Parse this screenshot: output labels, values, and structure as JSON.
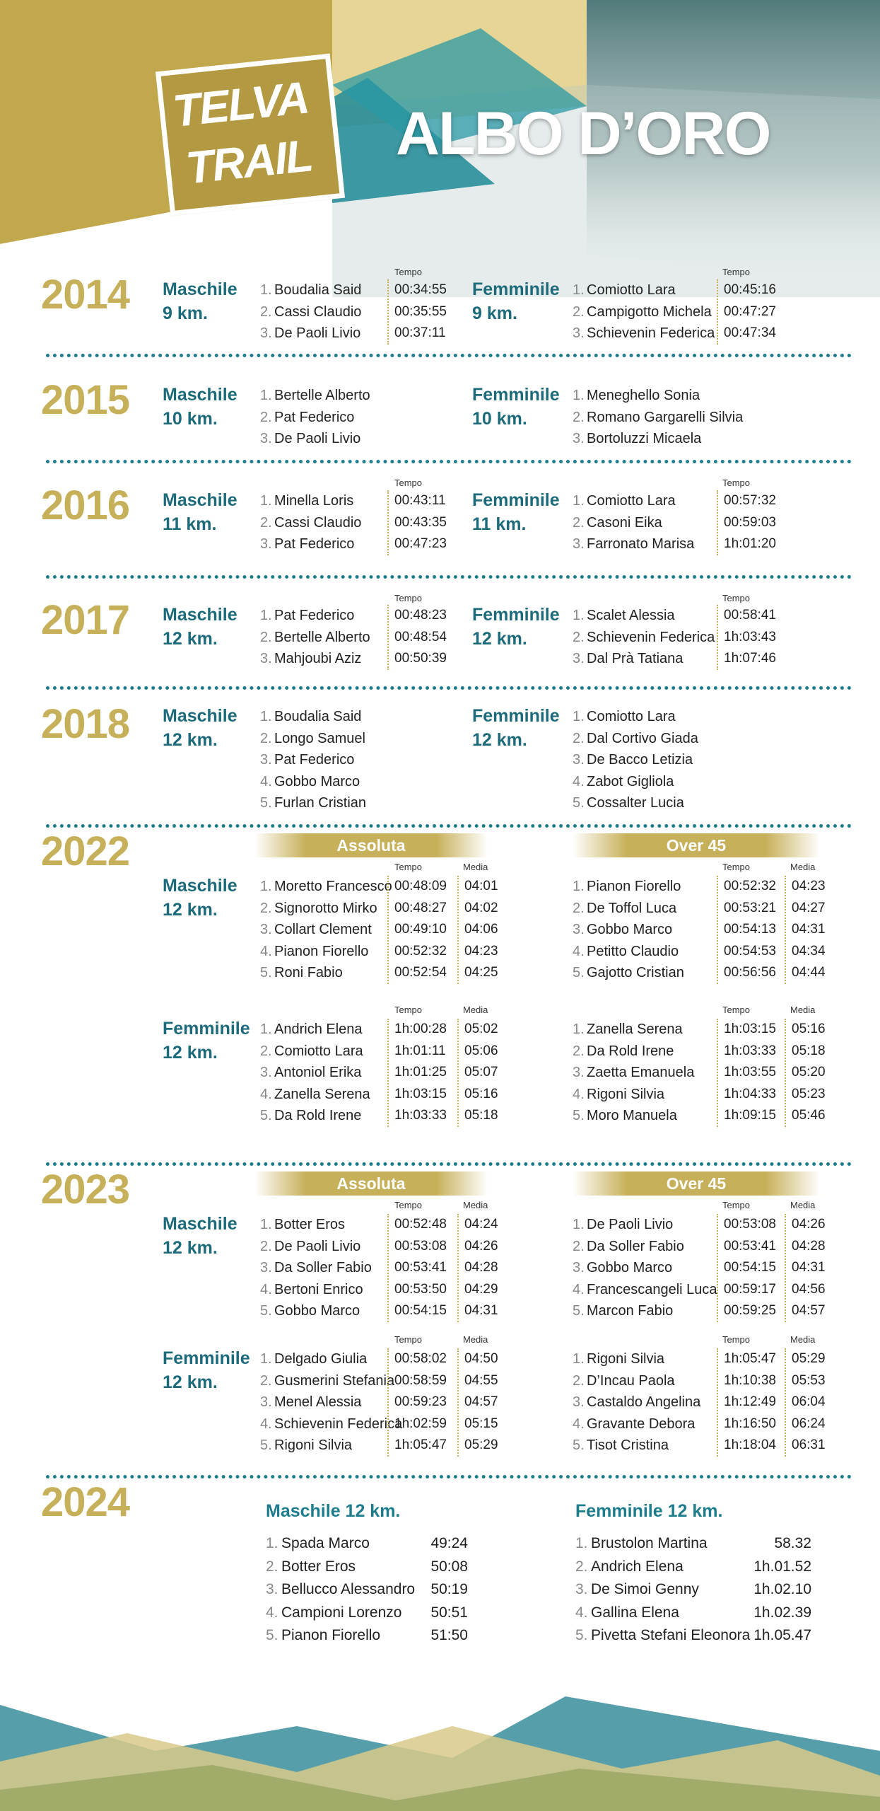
{
  "colors": {
    "gold": "#c7b05a",
    "teal": "#1d6b7a",
    "dark_teal": "#1d7d8c"
  },
  "header": {
    "logo_line1": "TELVA",
    "logo_line2": "TRAIL",
    "title": "ALBO D’ORO"
  },
  "labels": {
    "tempo": "Tempo",
    "media": "Media",
    "assoluta": "Assoluta",
    "over45": "Over 45"
  },
  "y2014": {
    "year": "2014",
    "m_cat": "Maschile",
    "m_dist": "9 km.",
    "m_names": [
      "Boudalia Said",
      "Cassi Claudio",
      "De Paoli Livio"
    ],
    "m_times": [
      "00:34:55",
      "00:35:55",
      "00:37:11"
    ],
    "f_cat": "Femminile",
    "f_dist": "9 km.",
    "f_names": [
      "Comiotto Lara",
      "Campigotto Michela",
      "Schievenin Federica"
    ],
    "f_times": [
      "00:45:16",
      "00:47:27",
      "00:47:34"
    ]
  },
  "y2015": {
    "year": "2015",
    "m_cat": "Maschile",
    "m_dist": "10 km.",
    "m_names": [
      "Bertelle Alberto",
      "Pat Federico",
      "De Paoli Livio"
    ],
    "f_cat": "Femminile",
    "f_dist": "10 km.",
    "f_names": [
      "Meneghello Sonia",
      "Romano Gargarelli Silvia",
      "Bortoluzzi Micaela"
    ]
  },
  "y2016": {
    "year": "2016",
    "m_cat": "Maschile",
    "m_dist": "11 km.",
    "m_names": [
      "Minella Loris",
      "Cassi Claudio",
      "Pat Federico"
    ],
    "m_times": [
      "00:43:11",
      "00:43:35",
      "00:47:23"
    ],
    "f_cat": "Femminile",
    "f_dist": "11 km.",
    "f_names": [
      "Comiotto Lara",
      "Casoni Eika",
      "Farronato Marisa"
    ],
    "f_times": [
      "00:57:32",
      "00:59:03",
      "1h:01:20"
    ]
  },
  "y2017": {
    "year": "2017",
    "m_cat": "Maschile",
    "m_dist": "12 km.",
    "m_names": [
      "Pat Federico",
      "Bertelle Alberto",
      "Mahjoubi Aziz"
    ],
    "m_times": [
      "00:48:23",
      "00:48:54",
      "00:50:39"
    ],
    "f_cat": "Femminile",
    "f_dist": "12 km.",
    "f_names": [
      "Scalet Alessia",
      "Schievenin Federica",
      "Dal Prà Tatiana"
    ],
    "f_times": [
      "00:58:41",
      "1h:03:43",
      "1h:07:46"
    ]
  },
  "y2018": {
    "year": "2018",
    "m_cat": "Maschile",
    "m_dist": "12 km.",
    "m_names": [
      "Boudalia Said",
      "Longo Samuel",
      "Pat Federico",
      "Gobbo Marco",
      "Furlan Cristian"
    ],
    "f_cat": "Femminile",
    "f_dist": "12 km.",
    "f_names": [
      "Comiotto Lara",
      "Dal Cortivo Giada",
      "De Bacco Letizia",
      "Zabot Gigliola",
      "Cossalter Lucia"
    ]
  },
  "y2022": {
    "year": "2022",
    "m_cat": "Maschile",
    "m_dist": "12 km.",
    "m_abs_names": [
      "Moretto Francesco",
      "Signorotto Mirko",
      "Collart Clement",
      "Pianon Fiorello",
      "Roni Fabio"
    ],
    "m_abs_times": [
      "00:48:09",
      "00:48:27",
      "00:49:10",
      "00:52:32",
      "00:52:54"
    ],
    "m_abs_media": [
      "04:01",
      "04:02",
      "04:06",
      "04:23",
      "04:25"
    ],
    "m_o45_names": [
      "Pianon Fiorello",
      "De Toffol Luca",
      "Gobbo Marco",
      "Petitto Claudio",
      "Gajotto Cristian"
    ],
    "m_o45_times": [
      "00:52:32",
      "00:53:21",
      "00:54:13",
      "00:54:53",
      "00:56:56"
    ],
    "m_o45_media": [
      "04:23",
      "04:27",
      "04:31",
      "04:34",
      "04:44"
    ],
    "f_cat": "Femminile",
    "f_dist": "12 km.",
    "f_abs_names": [
      "Andrich Elena",
      "Comiotto Lara",
      "Antoniol Erika",
      "Zanella Serena",
      "Da Rold Irene"
    ],
    "f_abs_times": [
      "1h:00:28",
      "1h:01:11",
      "1h:01:25",
      "1h:03:15",
      "1h:03:33"
    ],
    "f_abs_media": [
      "05:02",
      "05:06",
      "05:07",
      "05:16",
      "05:18"
    ],
    "f_o45_names": [
      "Zanella Serena",
      "Da Rold Irene",
      "Zaetta Emanuela",
      "Rigoni Silvia",
      "Moro Manuela"
    ],
    "f_o45_times": [
      "1h:03:15",
      "1h:03:33",
      "1h:03:55",
      "1h:04:33",
      "1h:09:15"
    ],
    "f_o45_media": [
      "05:16",
      "05:18",
      "05:20",
      "05:23",
      "05:46"
    ]
  },
  "y2023": {
    "year": "2023",
    "m_cat": "Maschile",
    "m_dist": "12 km.",
    "m_abs_names": [
      "Botter Eros",
      "De Paoli Livio",
      "Da Soller Fabio",
      "Bertoni Enrico",
      "Gobbo Marco"
    ],
    "m_abs_times": [
      "00:52:48",
      "00:53:08",
      "00:53:41",
      "00:53:50",
      "00:54:15"
    ],
    "m_abs_media": [
      "04:24",
      "04:26",
      "04:28",
      "04:29",
      "04:31"
    ],
    "m_o45_names": [
      "De Paoli Livio",
      "Da Soller Fabio",
      "Gobbo Marco",
      "Francescangeli Luca",
      "Marcon Fabio"
    ],
    "m_o45_times": [
      "00:53:08",
      "00:53:41",
      "00:54:15",
      "00:59:17",
      "00:59:25"
    ],
    "m_o45_media": [
      "04:26",
      "04:28",
      "04:31",
      "04:56",
      "04:57"
    ],
    "f_cat": "Femminile",
    "f_dist": "12 km.",
    "f_abs_names": [
      "Delgado Giulia",
      "Gusmerini Stefania",
      "Menel Alessia",
      "Schievenin Federica",
      "Rigoni Silvia"
    ],
    "f_abs_times": [
      "00:58:02",
      "00:58:59",
      "00:59:23",
      "1h:02:59",
      "1h:05:47"
    ],
    "f_abs_media": [
      "04:50",
      "04:55",
      "04:57",
      "05:15",
      "05:29"
    ],
    "f_o45_names": [
      "Rigoni Silvia",
      "D’Incau Paola",
      "Castaldo Angelina",
      "Gravante Debora",
      "Tisot Cristina"
    ],
    "f_o45_times": [
      "1h:05:47",
      "1h:10:38",
      "1h:12:49",
      "1h:16:50",
      "1h:18:04"
    ],
    "f_o45_media": [
      "05:29",
      "05:53",
      "06:04",
      "06:24",
      "06:31"
    ]
  },
  "y2024": {
    "year": "2024",
    "m_title": "Maschile 12 km.",
    "m_names": [
      "Spada Marco",
      "Botter Eros",
      "Bellucco Alessandro",
      "Campioni Lorenzo",
      "Pianon Fiorello"
    ],
    "m_times": [
      "49:24",
      "50:08",
      "50:19",
      "50:51",
      "51:50"
    ],
    "f_title": "Femminile 12 km.",
    "f_names": [
      "Brustolon Martina",
      "Andrich Elena",
      "De Simoi Genny",
      "Gallina Elena",
      "Pivetta Stefani Eleonora"
    ],
    "f_times": [
      "58.32",
      "1h.01.52",
      "1h.02.10",
      "1h.02.39",
      "1h.05.47"
    ]
  }
}
